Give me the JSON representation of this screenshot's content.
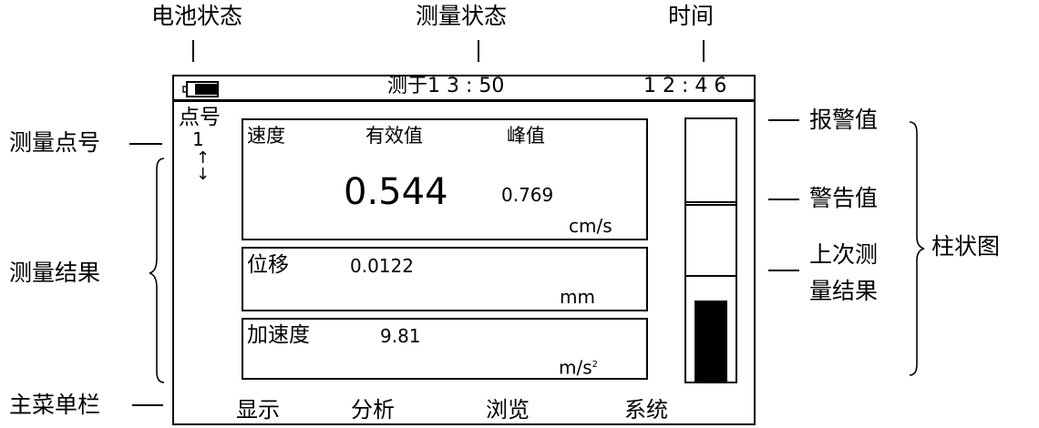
{
  "callouts": {
    "battery": "电池状态",
    "measure_status": "测量状态",
    "time": "时间",
    "point_no": "测量点号",
    "results": "测量结果",
    "main_menu": "主菜单栏",
    "alarm": "报警值",
    "warning": "警告值",
    "last_result_line1": "上次测",
    "last_result_line2": "量结果",
    "bar_chart": "柱状图"
  },
  "screen": {
    "status_bar": {
      "measured_at": "测于1 3 : 50",
      "clock": "1 2 : 4 6"
    },
    "point": {
      "label": "点号",
      "number": "1",
      "arrow_up": "↑",
      "arrow_down": "↓"
    },
    "velocity": {
      "label": "速度",
      "rms_header": "有效值",
      "peak_header": "峰值",
      "rms_value": "0.544",
      "peak_value": "0.769",
      "unit": "cm/s"
    },
    "displacement": {
      "label": "位移",
      "value": "0.0122",
      "unit": "mm"
    },
    "acceleration": {
      "label": "加速度",
      "value": "9.81",
      "unit_base": "m/s",
      "unit_sup": "2"
    },
    "gauge": {
      "last_result_fraction": 0.31
    },
    "menu": [
      "显示",
      "分析",
      "浏览",
      "系统"
    ]
  }
}
